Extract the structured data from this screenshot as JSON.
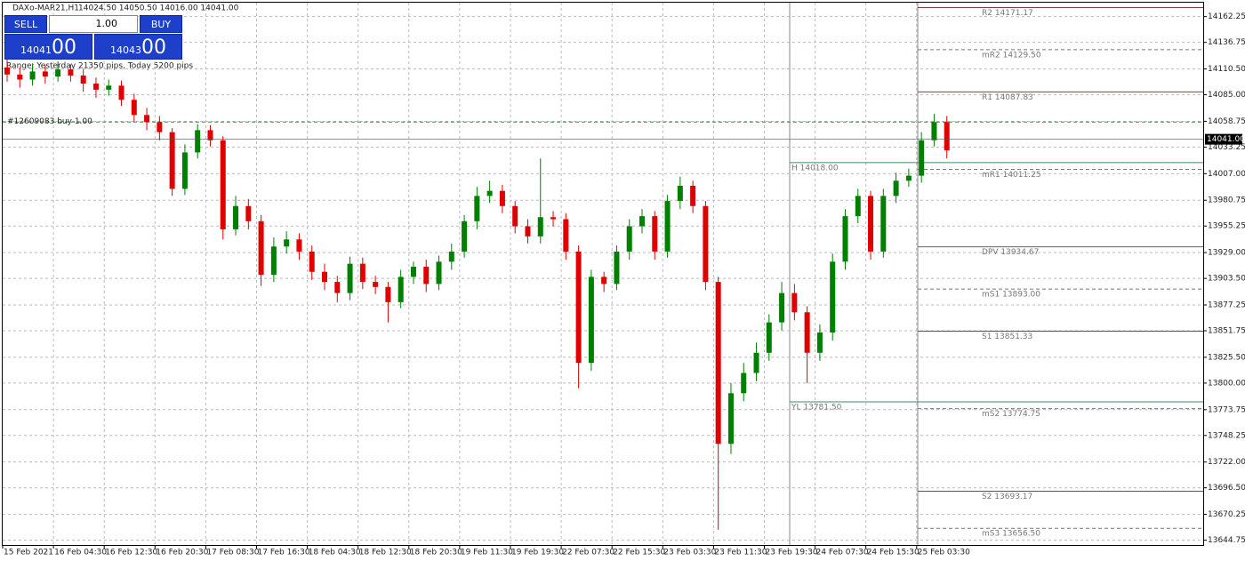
{
  "header": {
    "symbol": "DAXo-MAR21,H1",
    "ohlc": "14024.50 14050.50 14016.00 14041.00"
  },
  "trade_panel": {
    "sell": "SELL",
    "buy": "BUY",
    "lots": "1.00",
    "bid_big": "14041",
    "bid_small": "00",
    "ask_big": "14043",
    "ask_small": "00"
  },
  "range_text": "Range: Yesterday 21350 pips, Today 5200 pips",
  "chart_data": {
    "type": "candlestick",
    "x_labels": [
      "15 Feb 2021",
      "16 Feb 04:30",
      "16 Feb 12:30",
      "16 Feb 20:30",
      "17 Feb 08:30",
      "17 Feb 16:30",
      "18 Feb 04:30",
      "18 Feb 12:30",
      "18 Feb 20:30",
      "19 Feb 11:30",
      "19 Feb 19:30",
      "22 Feb 07:30",
      "22 Feb 15:30",
      "23 Feb 03:30",
      "23 Feb 11:30",
      "23 Feb 19:30",
      "24 Feb 07:30",
      "24 Feb 15:30",
      "25 Feb 03:30"
    ],
    "open": [
      14112,
      14105,
      14100,
      14108,
      14103,
      14110,
      14104,
      14096,
      14090,
      14094,
      14080,
      14065,
      14058,
      14048,
      13992,
      14028,
      14050,
      14040,
      13952,
      13975,
      13960,
      13907,
      13935,
      13942,
      13930,
      13910,
      13900,
      13889,
      13918,
      13900,
      13895,
      13880,
      13905,
      13915,
      13898,
      13920,
      13930,
      13960,
      13985,
      13990,
      13975,
      13955,
      13945,
      13964,
      13962,
      13930,
      13820,
      13905,
      13898,
      13930,
      13955,
      13965,
      13930,
      13980,
      13995,
      13975,
      13900,
      13740,
      13790,
      13810,
      13830,
      13860,
      13889,
      13870,
      13830,
      13850,
      13920,
      13965,
      13985,
      13930,
      13985,
      14000,
      14005,
      14040,
      14058
    ],
    "high": [
      14120,
      14112,
      14116,
      14114,
      14118,
      14115,
      14110,
      14102,
      14100,
      14099,
      14086,
      14072,
      14064,
      14052,
      14036,
      14056,
      14055,
      14044,
      13985,
      13982,
      13966,
      13944,
      13950,
      13948,
      13936,
      13918,
      13906,
      13925,
      13924,
      13906,
      13900,
      13912,
      13920,
      13922,
      13926,
      13938,
      13966,
      13994,
      14000,
      13996,
      13980,
      13962,
      14022,
      13970,
      13968,
      13936,
      13912,
      13910,
      13936,
      13962,
      13972,
      13970,
      13986,
      14004,
      14000,
      13980,
      13905,
      13800,
      13820,
      13840,
      13868,
      13900,
      13898,
      13876,
      13858,
      13928,
      13972,
      13992,
      13990,
      13992,
      14008,
      14012,
      14048,
      14066,
      14064
    ],
    "low": [
      14098,
      14092,
      14094,
      14096,
      14098,
      14098,
      14088,
      14082,
      14084,
      14074,
      14058,
      14050,
      14040,
      13985,
      13986,
      14022,
      14034,
      13942,
      13946,
      13952,
      13896,
      13900,
      13928,
      13922,
      13902,
      13892,
      13880,
      13882,
      13893,
      13888,
      13860,
      13874,
      13898,
      13890,
      13892,
      13912,
      13924,
      13952,
      13978,
      13968,
      13948,
      13938,
      13938,
      13955,
      13922,
      13795,
      13812,
      13890,
      13892,
      13922,
      13948,
      13922,
      13924,
      13972,
      13968,
      13892,
      13655,
      13730,
      13782,
      13802,
      13822,
      13852,
      13862,
      13800,
      13822,
      13842,
      13912,
      13958,
      13922,
      13924,
      13978,
      13994,
      13998,
      14034,
      14022
    ],
    "close": [
      14105,
      14100,
      14108,
      14103,
      14110,
      14104,
      14096,
      14090,
      14094,
      14080,
      14065,
      14058,
      14048,
      13992,
      14028,
      14050,
      14040,
      13952,
      13975,
      13960,
      13907,
      13935,
      13942,
      13930,
      13910,
      13900,
      13889,
      13918,
      13900,
      13895,
      13880,
      13905,
      13915,
      13898,
      13920,
      13930,
      13960,
      13985,
      13990,
      13975,
      13955,
      13945,
      13964,
      13962,
      13930,
      13820,
      13905,
      13898,
      13930,
      13955,
      13965,
      13930,
      13980,
      13995,
      13975,
      13900,
      13740,
      13790,
      13810,
      13830,
      13860,
      13889,
      13870,
      13830,
      13850,
      13920,
      13965,
      13985,
      13930,
      13985,
      14000,
      14005,
      14040,
      14058,
      14030
    ],
    "up_color": "#008000",
    "down_color": "#e00000",
    "ylim": [
      13640,
      14176
    ],
    "yticks": [
      14162.25,
      14136.75,
      {
        "value": 14110.5,
        "label": "14110.50"
      },
      {
        "value": 14085,
        "label": "14085.00"
      },
      14058.75,
      14033.25,
      {
        "value": 14007,
        "label": "14007.00"
      },
      13980.75,
      13955.25,
      {
        "value": 13929,
        "label": "13929.00"
      },
      {
        "value": 13903.5,
        "label": "13903.50"
      },
      13877.25,
      13851.75,
      {
        "value": 13825.5,
        "label": "13825.50"
      },
      {
        "value": 13800,
        "label": "13800.00"
      },
      13773.75,
      13748.25,
      {
        "value": 13722,
        "label": "13722.00"
      },
      {
        "value": 13696.5,
        "label": "13696.50"
      },
      13670.25,
      13644.75
    ],
    "grid": true,
    "pivot_levels": [
      {
        "label": "R2 14171.17",
        "value": 14171.17,
        "color": "#8b3a3a"
      },
      {
        "label": "mR2 14129.50",
        "value": 14129.5,
        "color": "#777777"
      },
      {
        "label": "R1 14087.83",
        "value": 14087.83,
        "color": "#8b3a3a"
      },
      {
        "label": "mR1 14011.25",
        "value": 14011.25,
        "color": "#777777"
      },
      {
        "label": "DPV 13934.67",
        "value": 13934.67,
        "color": "#4a6a8a"
      },
      {
        "label": "mS1 13893.00",
        "value": 13893,
        "color": "#777777"
      },
      {
        "label": "S1 13851.33",
        "value": 13851.33,
        "color": "#555555"
      },
      {
        "label": "mS2 13774.75",
        "value": 13774.75,
        "color": "#777777"
      },
      {
        "label": "S2 13693.17",
        "value": 13693.17,
        "color": "#555555"
      },
      {
        "label": "mS3 13656.50",
        "value": 13656.5,
        "color": "#777777"
      }
    ],
    "day_levels": [
      {
        "label": "H 14018.00",
        "value": 14018,
        "color": "#3a8a6a"
      },
      {
        "label": "YL 13781.50",
        "value": 13781.5,
        "color": "#3a8a6a"
      }
    ],
    "current_price": {
      "value": 14041,
      "label": "14041.00"
    },
    "order": {
      "label": "#12609083 buy 1.00",
      "value": 14058,
      "color": "#2a9a2a"
    }
  }
}
